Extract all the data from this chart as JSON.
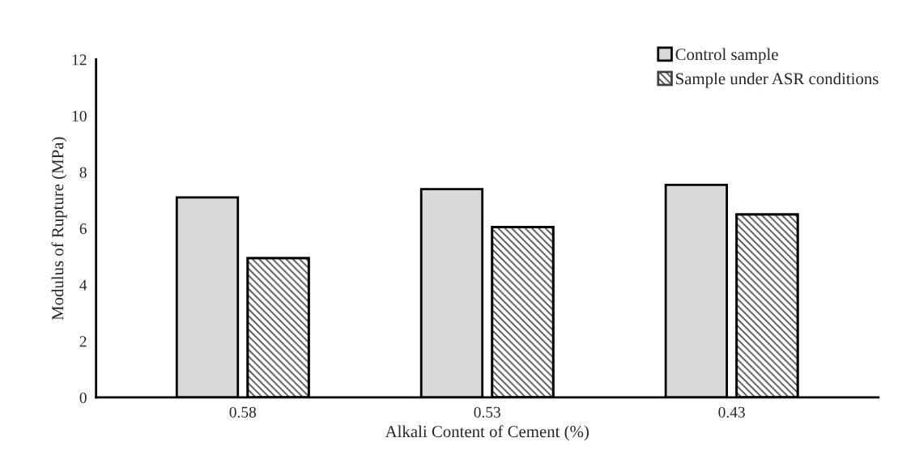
{
  "chart_data": {
    "type": "bar",
    "xlabel": "Alkali Content of Cement (%)",
    "ylabel": "Modulus of Rupture (MPa)",
    "categories": [
      "0.58",
      "0.53",
      "0.43"
    ],
    "series": [
      {
        "name": "Control sample",
        "color": "#d9d9d9",
        "values": [
          7.1,
          7.4,
          7.55
        ]
      },
      {
        "name": "Sample under ASR conditions",
        "color": "#404040",
        "values": [
          4.95,
          6.05,
          6.5
        ]
      }
    ],
    "ylim": [
      0,
      12
    ],
    "yticks": [
      0,
      2,
      4,
      6,
      8,
      10,
      12
    ],
    "grid": false,
    "legend": "top right"
  }
}
